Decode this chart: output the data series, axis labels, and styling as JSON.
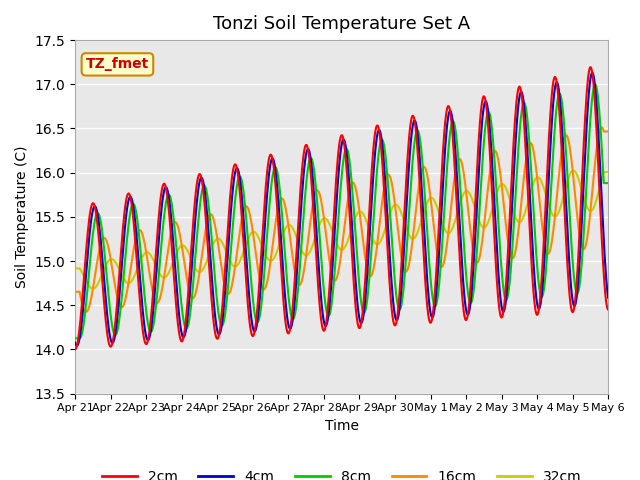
{
  "title": "Tonzi Soil Temperature Set A",
  "xlabel": "Time",
  "ylabel": "Soil Temperature (C)",
  "ylim": [
    13.5,
    17.5
  ],
  "annotation": "TZ_fmet",
  "xtick_labels": [
    "Apr 21",
    "Apr 22",
    "Apr 23",
    "Apr 24",
    "Apr 25",
    "Apr 26",
    "Apr 27",
    "Apr 28",
    "Apr 29",
    "Apr 30",
    "May 1",
    "May 2",
    "May 3",
    "May 4",
    "May 5",
    "May 6"
  ],
  "legend_labels": [
    "2cm",
    "4cm",
    "8cm",
    "16cm",
    "32cm"
  ],
  "line_colors": [
    "#ff0000",
    "#0000cc",
    "#00cc00",
    "#ff8800",
    "#cccc00"
  ],
  "background_color": "#e8e8e8",
  "grid_color": "#ffffff",
  "num_days": 15,
  "points_per_day": 48,
  "amp_base": 0.8,
  "amp_growth": 0.04,
  "base_temp": 14.8,
  "temp_slope": 0.07
}
